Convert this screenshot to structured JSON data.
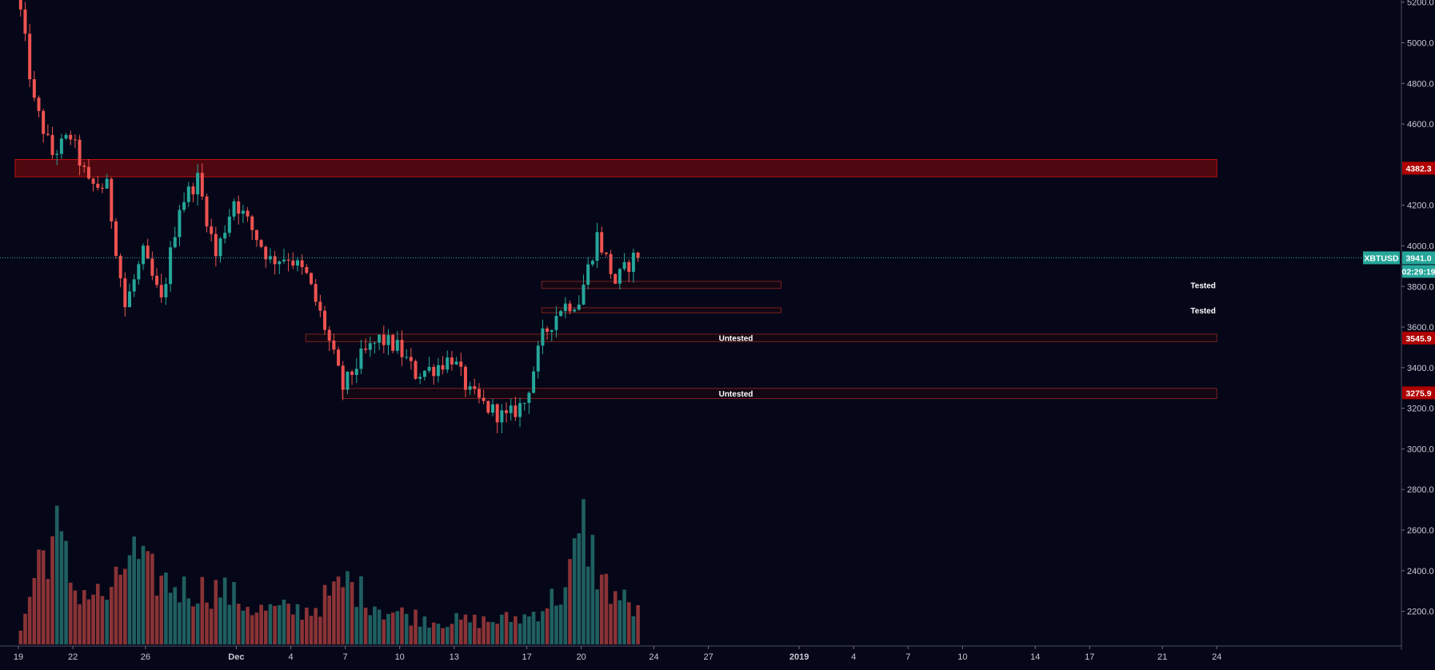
{
  "chart_data": {
    "type": "candlestick",
    "symbol": "XBTUSD",
    "last_price": 3941.0,
    "last_price_label": "3941.0",
    "countdown": "02:29:19",
    "colors": {
      "background": "#050718",
      "up": "#26a69a",
      "down": "#ef5350",
      "volume_up": "#1f5f60",
      "volume_down": "#8a3336",
      "zone_fill": "#8b0a0a",
      "price_badge": "#b00000",
      "symbol_badge": "#26a69a"
    },
    "y_axis": {
      "min": 2100,
      "max": 5250,
      "ticks": [
        2200,
        2400,
        2600,
        2800,
        3000,
        3200,
        3400,
        3600,
        3800,
        4000,
        4200,
        4600,
        4800,
        5000,
        5200
      ],
      "tick_labels": [
        "2200.0",
        "2400.0",
        "2600.0",
        "2800.0",
        "3000.0",
        "3200.0",
        "3400.0",
        "3600.0",
        "3800.0",
        "4000.0",
        "4200.0",
        "4600.0",
        "4800.0",
        "5000.0",
        "5200.0"
      ]
    },
    "x_axis": {
      "start": "2018-11-19",
      "end": "2019-01-24",
      "ticks": [
        {
          "date": "2018-11-19",
          "label": "19"
        },
        {
          "date": "2018-11-22",
          "label": "22"
        },
        {
          "date": "2018-11-26",
          "label": "26"
        },
        {
          "date": "2018-12-01",
          "label": "Dec"
        },
        {
          "date": "2018-12-04",
          "label": "4"
        },
        {
          "date": "2018-12-07",
          "label": "7"
        },
        {
          "date": "2018-12-10",
          "label": "10"
        },
        {
          "date": "2018-12-13",
          "label": "13"
        },
        {
          "date": "2018-12-17",
          "label": "17"
        },
        {
          "date": "2018-12-20",
          "label": "20"
        },
        {
          "date": "2018-12-24",
          "label": "24"
        },
        {
          "date": "2018-12-27",
          "label": "27"
        },
        {
          "date": "2019-01-01",
          "label": "2019"
        },
        {
          "date": "2019-01-04",
          "label": "4"
        },
        {
          "date": "2019-01-07",
          "label": "7"
        },
        {
          "date": "2019-01-10",
          "label": "10"
        },
        {
          "date": "2019-01-14",
          "label": "14"
        },
        {
          "date": "2019-01-17",
          "label": "17"
        },
        {
          "date": "2019-01-21",
          "label": "21"
        },
        {
          "date": "2019-01-24",
          "label": "24"
        }
      ]
    },
    "key_points": [
      {
        "date": "2018-11-19",
        "price": 5300
      },
      {
        "date": "2018-11-20",
        "price": 4700
      },
      {
        "date": "2018-11-21",
        "price": 4450
      },
      {
        "date": "2018-11-22",
        "price": 4540
      },
      {
        "date": "2018-11-23",
        "price": 4300
      },
      {
        "date": "2018-11-24",
        "price": 4290
      },
      {
        "date": "2018-11-25",
        "price": 3700
      },
      {
        "date": "2018-11-26",
        "price": 3960
      },
      {
        "date": "2018-11-27",
        "price": 3720
      },
      {
        "date": "2018-11-28",
        "price": 4200
      },
      {
        "date": "2018-11-29",
        "price": 4330
      },
      {
        "date": "2018-11-30",
        "price": 3950
      },
      {
        "date": "2018-12-01",
        "price": 4230
      },
      {
        "date": "2018-12-02",
        "price": 4080
      },
      {
        "date": "2018-12-03",
        "price": 3930
      },
      {
        "date": "2018-12-04",
        "price": 3950
      },
      {
        "date": "2018-12-05",
        "price": 3850
      },
      {
        "date": "2018-12-06",
        "price": 3600
      },
      {
        "date": "2018-12-07",
        "price": 3300
      },
      {
        "date": "2018-12-08",
        "price": 3450
      },
      {
        "date": "2018-12-09",
        "price": 3540
      },
      {
        "date": "2018-12-10",
        "price": 3500
      },
      {
        "date": "2018-12-11",
        "price": 3370
      },
      {
        "date": "2018-12-12",
        "price": 3400
      },
      {
        "date": "2018-12-13",
        "price": 3450
      },
      {
        "date": "2018-12-14",
        "price": 3270
      },
      {
        "date": "2018-12-15",
        "price": 3200
      },
      {
        "date": "2018-12-16",
        "price": 3150
      },
      {
        "date": "2018-12-17",
        "price": 3230
      },
      {
        "date": "2018-12-18",
        "price": 3550
      },
      {
        "date": "2018-12-19",
        "price": 3700
      },
      {
        "date": "2018-12-20",
        "price": 3730
      },
      {
        "date": "2018-12-21",
        "price": 4050
      },
      {
        "date": "2018-12-22",
        "price": 3820
      },
      {
        "date": "2018-12-23",
        "price": 3941
      }
    ],
    "volume_envelope": [
      {
        "date": "2018-11-19",
        "value": 0.08
      },
      {
        "date": "2018-11-20",
        "value": 0.55
      },
      {
        "date": "2018-11-21",
        "value": 0.7
      },
      {
        "date": "2018-11-22",
        "value": 0.35
      },
      {
        "date": "2018-11-24",
        "value": 0.3
      },
      {
        "date": "2018-11-25",
        "value": 0.6
      },
      {
        "date": "2018-11-26",
        "value": 0.45
      },
      {
        "date": "2018-11-28",
        "value": 0.35
      },
      {
        "date": "2018-11-30",
        "value": 0.35
      },
      {
        "date": "2018-12-02",
        "value": 0.22
      },
      {
        "date": "2018-12-05",
        "value": 0.22
      },
      {
        "date": "2018-12-07",
        "value": 0.4
      },
      {
        "date": "2018-12-09",
        "value": 0.22
      },
      {
        "date": "2018-12-12",
        "value": 0.15
      },
      {
        "date": "2018-12-15",
        "value": 0.15
      },
      {
        "date": "2018-12-17",
        "value": 0.18
      },
      {
        "date": "2018-12-19",
        "value": 0.35
      },
      {
        "date": "2018-12-20",
        "value": 0.75
      },
      {
        "date": "2018-12-21",
        "value": 0.4
      },
      {
        "date": "2018-12-23",
        "value": 0.2
      }
    ],
    "zones": [
      {
        "start": "2018-11-19",
        "end": "2019-01-24",
        "low": 4340,
        "high": 4425,
        "label": "",
        "style": "filled"
      },
      {
        "start": "2018-12-18",
        "end": "2018-12-31",
        "low": 3790,
        "high": 3825,
        "label": "Tested",
        "style": "outline"
      },
      {
        "start": "2018-12-18",
        "end": "2018-12-31",
        "low": 3670,
        "high": 3695,
        "label": "Tested",
        "style": "outline"
      },
      {
        "start": "2018-12-05",
        "end": "2019-01-24",
        "low": 3528,
        "high": 3565,
        "label": "Untested",
        "style": "outline"
      },
      {
        "start": "2018-12-07",
        "end": "2019-01-24",
        "low": 3248,
        "high": 3298,
        "label": "Untested",
        "style": "outline"
      }
    ],
    "price_badges": [
      {
        "value": 4382.3,
        "label": "4382.3"
      },
      {
        "value": 3545.9,
        "label": "3545.9"
      },
      {
        "value": 3275.9,
        "label": "3275.9"
      }
    ]
  }
}
